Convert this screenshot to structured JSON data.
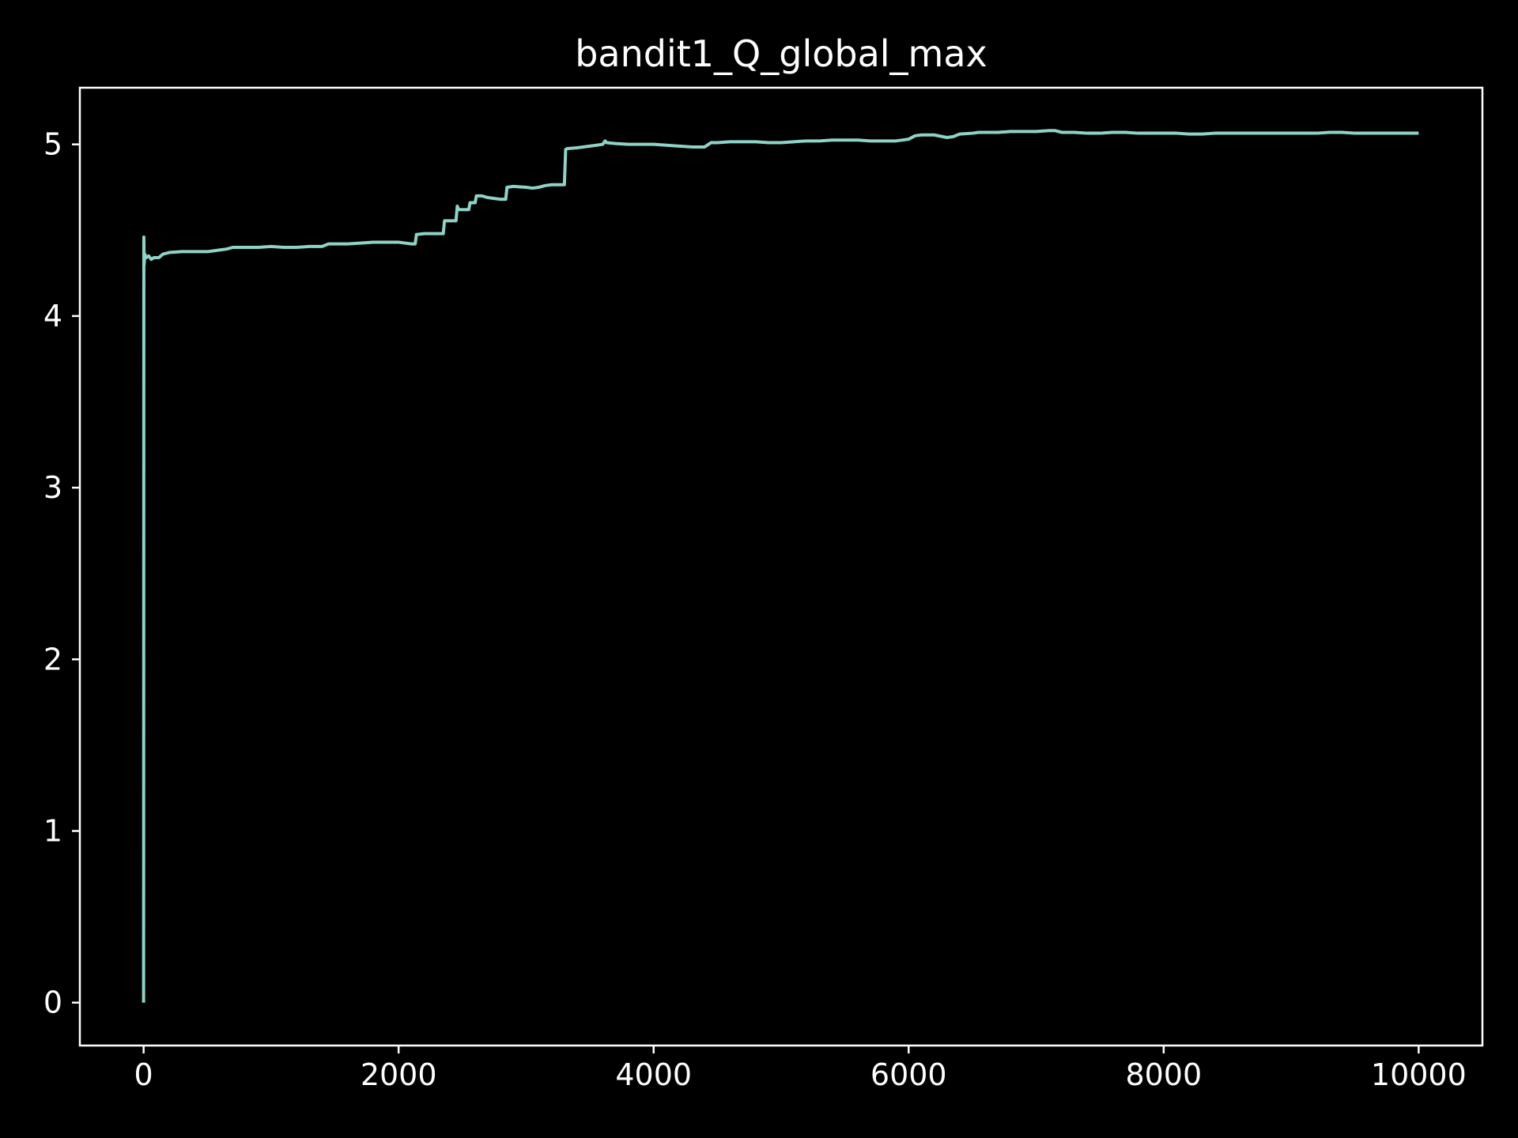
{
  "chart_data": {
    "type": "line",
    "title": "bandit1_Q_global_max",
    "xlabel": "",
    "ylabel": "",
    "xlim": [
      -500,
      10500
    ],
    "ylim": [
      -0.25,
      5.33
    ],
    "x_ticks": [
      0,
      2000,
      4000,
      6000,
      8000,
      10000
    ],
    "x_tick_labels": [
      "0",
      "2000",
      "4000",
      "6000",
      "8000",
      "10000"
    ],
    "y_ticks": [
      0,
      1,
      2,
      3,
      4,
      5
    ],
    "y_tick_labels": [
      "0",
      "1",
      "2",
      "3",
      "4",
      "5"
    ],
    "grid": false,
    "legend": "none",
    "background_color": "#000000",
    "axes_color": "#ffffff",
    "series": [
      {
        "color": "#8dd3c7",
        "x": [
          0,
          2,
          4,
          6,
          10,
          20,
          40,
          60,
          80,
          120,
          150,
          200,
          300,
          400,
          500,
          550,
          600,
          650,
          700,
          800,
          900,
          1000,
          1100,
          1200,
          1300,
          1400,
          1450,
          1500,
          1600,
          1700,
          1800,
          1900,
          2000,
          2050,
          2100,
          2130,
          2140,
          2200,
          2300,
          2350,
          2360,
          2400,
          2450,
          2460,
          2470,
          2500,
          2550,
          2560,
          2600,
          2610,
          2650,
          2700,
          2750,
          2800,
          2840,
          2850,
          2900,
          3000,
          3050,
          3100,
          3150,
          3200,
          3300,
          3310,
          3320,
          3400,
          3500,
          3600,
          3620,
          3630,
          3700,
          3800,
          3900,
          4000,
          4100,
          4200,
          4300,
          4400,
          4450,
          4460,
          4500,
          4600,
          4700,
          4800,
          4900,
          5000,
          5100,
          5200,
          5300,
          5400,
          5500,
          5600,
          5700,
          5800,
          5900,
          6000,
          6050,
          6100,
          6200,
          6300,
          6350,
          6400,
          6500,
          6550,
          6600,
          6700,
          6800,
          6900,
          7000,
          7100,
          7150,
          7200,
          7300,
          7400,
          7500,
          7600,
          7700,
          7800,
          7900,
          8000,
          8100,
          8200,
          8300,
          8400,
          8500,
          8600,
          8700,
          8800,
          8900,
          9000,
          9100,
          9200,
          9300,
          9400,
          9500,
          9600,
          9700,
          9800,
          9900,
          10000
        ],
        "y": [
          0,
          4.46,
          4.3,
          4.32,
          4.36,
          4.34,
          4.35,
          4.33,
          4.34,
          4.34,
          4.36,
          4.37,
          4.375,
          4.375,
          4.375,
          4.38,
          4.385,
          4.39,
          4.4,
          4.4,
          4.4,
          4.405,
          4.4,
          4.4,
          4.405,
          4.405,
          4.42,
          4.42,
          4.42,
          4.425,
          4.43,
          4.43,
          4.43,
          4.425,
          4.42,
          4.42,
          4.475,
          4.48,
          4.48,
          4.48,
          4.555,
          4.555,
          4.555,
          4.64,
          4.62,
          4.62,
          4.62,
          4.66,
          4.66,
          4.7,
          4.7,
          4.69,
          4.685,
          4.68,
          4.68,
          4.75,
          4.755,
          4.75,
          4.745,
          4.75,
          4.76,
          4.765,
          4.765,
          4.97,
          4.975,
          4.98,
          4.99,
          5.0,
          5.02,
          5.01,
          5.005,
          5.0,
          5.0,
          5.0,
          4.995,
          4.99,
          4.985,
          4.985,
          5.01,
          5.01,
          5.01,
          5.015,
          5.015,
          5.015,
          5.01,
          5.01,
          5.015,
          5.02,
          5.02,
          5.025,
          5.025,
          5.025,
          5.02,
          5.02,
          5.02,
          5.03,
          5.05,
          5.055,
          5.055,
          5.04,
          5.045,
          5.06,
          5.065,
          5.07,
          5.07,
          5.07,
          5.075,
          5.075,
          5.075,
          5.08,
          5.08,
          5.07,
          5.07,
          5.065,
          5.065,
          5.07,
          5.07,
          5.065,
          5.065,
          5.065,
          5.065,
          5.06,
          5.06,
          5.065,
          5.065,
          5.065,
          5.065,
          5.065,
          5.065,
          5.065,
          5.065,
          5.065,
          5.07,
          5.07,
          5.065,
          5.065,
          5.065,
          5.065,
          5.065,
          5.065
        ]
      }
    ]
  }
}
